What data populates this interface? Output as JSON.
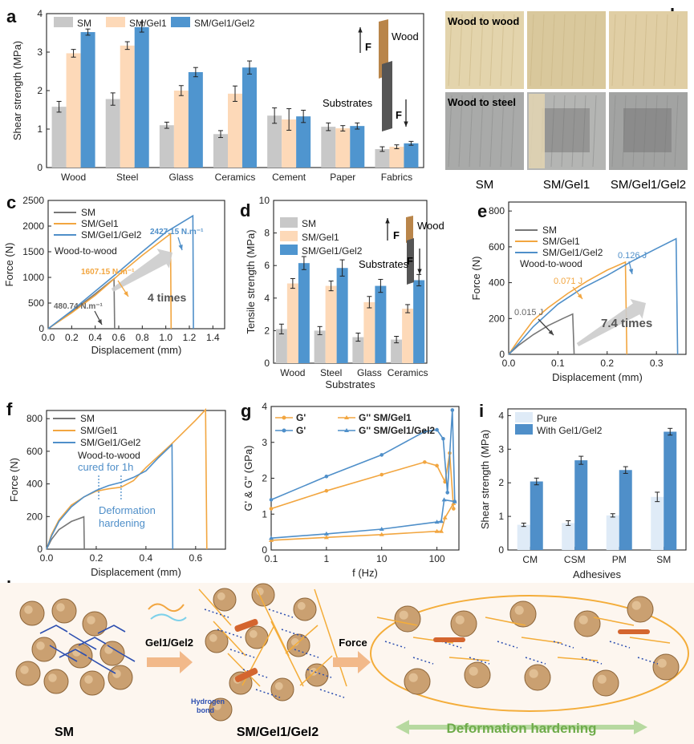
{
  "colors": {
    "sm": "#c8c8c8",
    "gel1": "#fdd9b8",
    "gel2": "#4f95cf",
    "gray": "#777777",
    "orange": "#f2a640",
    "blue": "#4f8fc9",
    "pure": "#dfebf7",
    "with": "#4f8fc9",
    "fiber": "#f4ad3a",
    "nav": "#2d4fb0",
    "green": "#6fac4b"
  },
  "panels": {
    "a": "a",
    "b": "b",
    "c": "c",
    "d": "d",
    "e": "e",
    "f": "f",
    "g": "g",
    "h": "h",
    "i": "i"
  },
  "chart_data": [
    {
      "id": "a",
      "type": "bar",
      "ylabel": "Shear strength (MPa)",
      "ylim": [
        0,
        4
      ],
      "yticks": [
        0,
        1,
        2,
        3,
        4
      ],
      "categories": [
        "Wood",
        "Steel",
        "Glass",
        "Ceramics",
        "Cement",
        "Paper",
        "Fabrics"
      ],
      "series": [
        {
          "name": "SM",
          "values": [
            1.58,
            1.78,
            1.1,
            0.87,
            1.35,
            1.06,
            0.48
          ],
          "errors": [
            0.14,
            0.16,
            0.08,
            0.09,
            0.2,
            0.1,
            0.06
          ]
        },
        {
          "name": "SM/Gel1",
          "values": [
            2.97,
            3.17,
            2.0,
            1.92,
            1.25,
            1.02,
            0.54
          ],
          "errors": [
            0.1,
            0.1,
            0.13,
            0.2,
            0.28,
            0.07,
            0.05
          ]
        },
        {
          "name": "SM/Gel1/Gel2",
          "values": [
            3.52,
            3.65,
            2.48,
            2.6,
            1.33,
            1.08,
            0.63
          ],
          "errors": [
            0.08,
            0.13,
            0.12,
            0.17,
            0.16,
            0.08,
            0.05
          ]
        }
      ],
      "insets": {
        "force": "F",
        "wood": "Wood",
        "substrates": "Substrates"
      }
    },
    {
      "id": "b",
      "type": "table",
      "row_labels": [
        "Wood to wood",
        "Wood to steel"
      ],
      "col_labels": [
        "SM",
        "SM/Gel1",
        "SM/Gel1/Gel2"
      ]
    },
    {
      "id": "c",
      "type": "line",
      "xlabel": "Displacement (mm)",
      "ylabel": "Force (N)",
      "xlim": [
        0,
        1.5
      ],
      "ylim": [
        0,
        2500
      ],
      "xticks": [
        0.0,
        0.2,
        0.4,
        0.6,
        0.8,
        1.0,
        1.2,
        1.4
      ],
      "yticks": [
        0,
        500,
        1000,
        1500,
        2000,
        2500
      ],
      "series": [
        {
          "name": "SM",
          "points": [
            [
              0,
              0
            ],
            [
              0.2,
              330
            ],
            [
              0.4,
              680
            ],
            [
              0.56,
              975
            ],
            [
              0.565,
              0
            ]
          ]
        },
        {
          "name": "SM/Gel1",
          "points": [
            [
              0,
              0
            ],
            [
              0.2,
              310
            ],
            [
              0.4,
              650
            ],
            [
              0.6,
              1050
            ],
            [
              0.8,
              1430
            ],
            [
              1.04,
              1850
            ],
            [
              1.045,
              0
            ]
          ]
        },
        {
          "name": "SM/Gel1/Gel2",
          "points": [
            [
              0,
              0
            ],
            [
              0.2,
              350
            ],
            [
              0.4,
              730
            ],
            [
              0.6,
              1110
            ],
            [
              0.8,
              1500
            ],
            [
              1.0,
              1880
            ],
            [
              1.23,
              2200
            ],
            [
              1.235,
              0
            ]
          ]
        }
      ],
      "annotations": [
        "Wood-to-wood",
        "2427.15 N.m⁻¹",
        "1607.15 N.m⁻¹",
        "480.74 N.m⁻¹",
        "4 times"
      ]
    },
    {
      "id": "d",
      "type": "bar",
      "xlabel": "Substrates",
      "ylabel": "Tensile strength (MPa)",
      "ylim": [
        0,
        10
      ],
      "yticks": [
        0,
        2,
        4,
        6,
        8,
        10
      ],
      "categories": [
        "Wood",
        "Steel",
        "Glass",
        "Ceramics"
      ],
      "series": [
        {
          "name": "SM",
          "values": [
            2.1,
            2.0,
            1.6,
            1.45
          ],
          "errors": [
            0.3,
            0.25,
            0.25,
            0.2
          ]
        },
        {
          "name": "SM/Gel1",
          "values": [
            4.9,
            4.75,
            3.75,
            3.35
          ],
          "errors": [
            0.3,
            0.3,
            0.35,
            0.25
          ]
        },
        {
          "name": "SM/Gel1/Gel2",
          "values": [
            6.15,
            5.85,
            4.75,
            5.1
          ],
          "errors": [
            0.4,
            0.5,
            0.4,
            0.35
          ]
        }
      ],
      "insets": {
        "force": "F",
        "wood": "Wood",
        "substrates": "Substrates"
      }
    },
    {
      "id": "e",
      "type": "line",
      "xlabel": "Displacement (mm)",
      "ylabel": "Force (N)",
      "xlim": [
        0,
        0.36
      ],
      "ylim": [
        0,
        850
      ],
      "xticks": [
        0.0,
        0.1,
        0.2,
        0.3
      ],
      "yticks": [
        0,
        200,
        400,
        600,
        800
      ],
      "series": [
        {
          "name": "SM",
          "points": [
            [
              0,
              0
            ],
            [
              0.02,
              50
            ],
            [
              0.05,
              110
            ],
            [
              0.08,
              160
            ],
            [
              0.11,
              200
            ],
            [
              0.13,
              225
            ],
            [
              0.133,
              0
            ]
          ]
        },
        {
          "name": "SM/Gel1",
          "points": [
            [
              0,
              0
            ],
            [
              0.02,
              80
            ],
            [
              0.05,
              190
            ],
            [
              0.08,
              260
            ],
            [
              0.12,
              340
            ],
            [
              0.16,
              410
            ],
            [
              0.2,
              470
            ],
            [
              0.237,
              515
            ],
            [
              0.24,
              0
            ]
          ]
        },
        {
          "name": "SM/Gel1/Gel2",
          "points": [
            [
              0,
              0
            ],
            [
              0.02,
              60
            ],
            [
              0.05,
              155
            ],
            [
              0.1,
              280
            ],
            [
              0.15,
              370
            ],
            [
              0.2,
              440
            ],
            [
              0.25,
              520
            ],
            [
              0.3,
              590
            ],
            [
              0.34,
              645
            ],
            [
              0.343,
              0
            ]
          ]
        }
      ],
      "annotations": [
        "Wood-to-wood",
        "0.126 J",
        "0.071 J",
        "0.015 J",
        "7.4 times"
      ]
    },
    {
      "id": "f",
      "type": "line",
      "xlabel": "Displacement (mm)",
      "ylabel": "Force (N)",
      "xlim": [
        0,
        0.72
      ],
      "ylim": [
        0,
        850
      ],
      "xticks": [
        0.0,
        0.2,
        0.4,
        0.6
      ],
      "yticks": [
        0,
        200,
        400,
        600,
        800
      ],
      "series": [
        {
          "name": "SM",
          "points": [
            [
              0,
              0
            ],
            [
              0.02,
              60
            ],
            [
              0.05,
              120
            ],
            [
              0.1,
              170
            ],
            [
              0.15,
              198
            ],
            [
              0.152,
              0
            ]
          ]
        },
        {
          "name": "SM/Gel1",
          "points": [
            [
              0,
              0
            ],
            [
              0.02,
              90
            ],
            [
              0.05,
              180
            ],
            [
              0.1,
              270
            ],
            [
              0.15,
              320
            ],
            [
              0.2,
              355
            ],
            [
              0.25,
              370
            ],
            [
              0.3,
              380
            ],
            [
              0.35,
              420
            ],
            [
              0.4,
              500
            ],
            [
              0.5,
              640
            ],
            [
              0.6,
              790
            ],
            [
              0.64,
              855
            ],
            [
              0.645,
              0
            ]
          ]
        },
        {
          "name": "SM/Gel1/Gel2",
          "points": [
            [
              0,
              0
            ],
            [
              0.02,
              80
            ],
            [
              0.05,
              170
            ],
            [
              0.1,
              260
            ],
            [
              0.15,
              320
            ],
            [
              0.2,
              360
            ],
            [
              0.25,
              390
            ],
            [
              0.3,
              410
            ],
            [
              0.35,
              440
            ],
            [
              0.4,
              480
            ],
            [
              0.45,
              560
            ],
            [
              0.505,
              640
            ],
            [
              0.508,
              0
            ]
          ]
        }
      ],
      "annotations": [
        "Wood-to-wood",
        "cured for 1h",
        "Deformation",
        "hardening"
      ]
    },
    {
      "id": "g",
      "type": "line",
      "xlabel": "f (Hz)",
      "ylabel": "G' & G'' (GPa)",
      "xscale": "log",
      "xlim": [
        0.1,
        250
      ],
      "ylim": [
        0,
        4
      ],
      "xticks": [
        "0.1",
        "1",
        "10",
        "100"
      ],
      "yticks": [
        0,
        1,
        2,
        3,
        4
      ],
      "series": [
        {
          "name": "G' SM/Gel1",
          "points": [
            [
              0.1,
              1.15
            ],
            [
              1,
              1.65
            ],
            [
              10,
              2.1
            ],
            [
              60,
              2.45
            ],
            [
              100,
              2.35
            ],
            [
              140,
              1.9
            ],
            [
              170,
              2.7
            ],
            [
              200,
              1.15
            ]
          ]
        },
        {
          "name": "G'' SM/Gel1",
          "points": [
            [
              0.1,
              0.27
            ],
            [
              1,
              0.35
            ],
            [
              10,
              0.43
            ],
            [
              100,
              0.52
            ],
            [
              120,
              0.52
            ],
            [
              140,
              0.9
            ],
            [
              200,
              1.3
            ]
          ]
        },
        {
          "name": "G' SM/Gel1/Gel2",
          "points": [
            [
              0.1,
              1.4
            ],
            [
              1,
              2.05
            ],
            [
              10,
              2.65
            ],
            [
              60,
              3.3
            ],
            [
              100,
              3.35
            ],
            [
              130,
              3.1
            ],
            [
              155,
              1.6
            ],
            [
              190,
              3.9
            ],
            [
              210,
              1.35
            ]
          ]
        },
        {
          "name": "G'' SM/Gel1/Gel2",
          "points": [
            [
              0.1,
              0.33
            ],
            [
              1,
              0.45
            ],
            [
              10,
              0.58
            ],
            [
              100,
              0.78
            ],
            [
              120,
              0.8
            ],
            [
              135,
              1.4
            ],
            [
              210,
              1.35
            ]
          ]
        }
      ],
      "legend": [
        "G'",
        "G'' SM/Gel1",
        "G'",
        "G'' SM/Gel1/Gel2"
      ]
    },
    {
      "id": "i",
      "type": "bar",
      "xlabel": "Adhesives",
      "ylabel": "Shear strength (MPa)",
      "ylim": [
        0,
        4.2
      ],
      "yticks": [
        0,
        1,
        2,
        3,
        4
      ],
      "categories": [
        "CM",
        "CSM",
        "PM",
        "SM"
      ],
      "series": [
        {
          "name": "Pure",
          "values": [
            0.75,
            0.8,
            1.03,
            1.58
          ],
          "errors": [
            0.05,
            0.07,
            0.05,
            0.14
          ]
        },
        {
          "name": "With Gel1/Gel2",
          "values": [
            2.04,
            2.67,
            2.38,
            3.52
          ],
          "errors": [
            0.1,
            0.12,
            0.1,
            0.1
          ]
        }
      ]
    },
    {
      "id": "h",
      "type": "table",
      "labels": {
        "sm": "SM",
        "gel": "Gel1/Gel2",
        "hydrogen": "Hydrogen",
        "bond": "bond",
        "product": "SM/Gel1/Gel2",
        "force": "Force",
        "hardening": "Deformation hardening"
      }
    }
  ]
}
